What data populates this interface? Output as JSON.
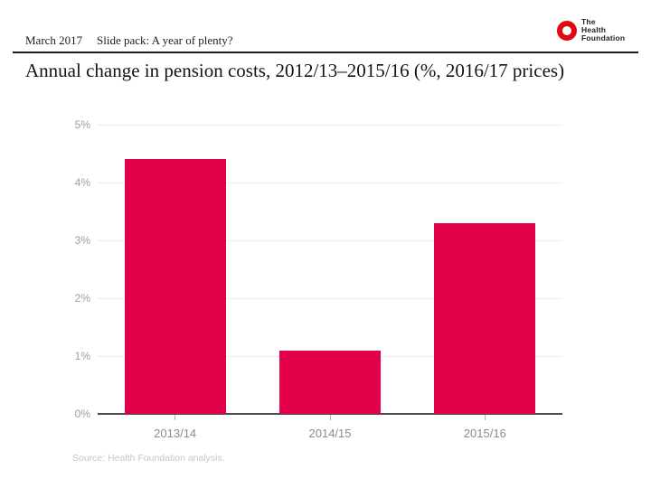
{
  "header": {
    "date": "March 2017",
    "subtitle": "Slide pack: A year of plenty?"
  },
  "logo": {
    "name": "The Health Foundation",
    "lines": [
      "The",
      "Health",
      "Foundation"
    ],
    "ring_color": "#e30613"
  },
  "title": "Annual change in pension costs, 2012/13–2015/16 (%, 2016/17 prices)",
  "chart_data": {
    "type": "bar",
    "title": "Annual change in pension costs, 2012/13–2015/16 (%, 2016/17 prices)",
    "categories": [
      "2013/14",
      "2014/15",
      "2015/16"
    ],
    "values": [
      4.4,
      1.1,
      3.3
    ],
    "xlabel": "",
    "ylabel": "",
    "ylim": [
      0,
      5
    ],
    "ytick_step": 1,
    "ytick_suffix": "%",
    "ytick_labels": [
      "0%",
      "1%",
      "2%",
      "3%",
      "4%",
      "5%"
    ],
    "grid": true,
    "legend_position": "none",
    "bar_color": "#e20048",
    "source": "Source: Health Foundation analysis."
  }
}
